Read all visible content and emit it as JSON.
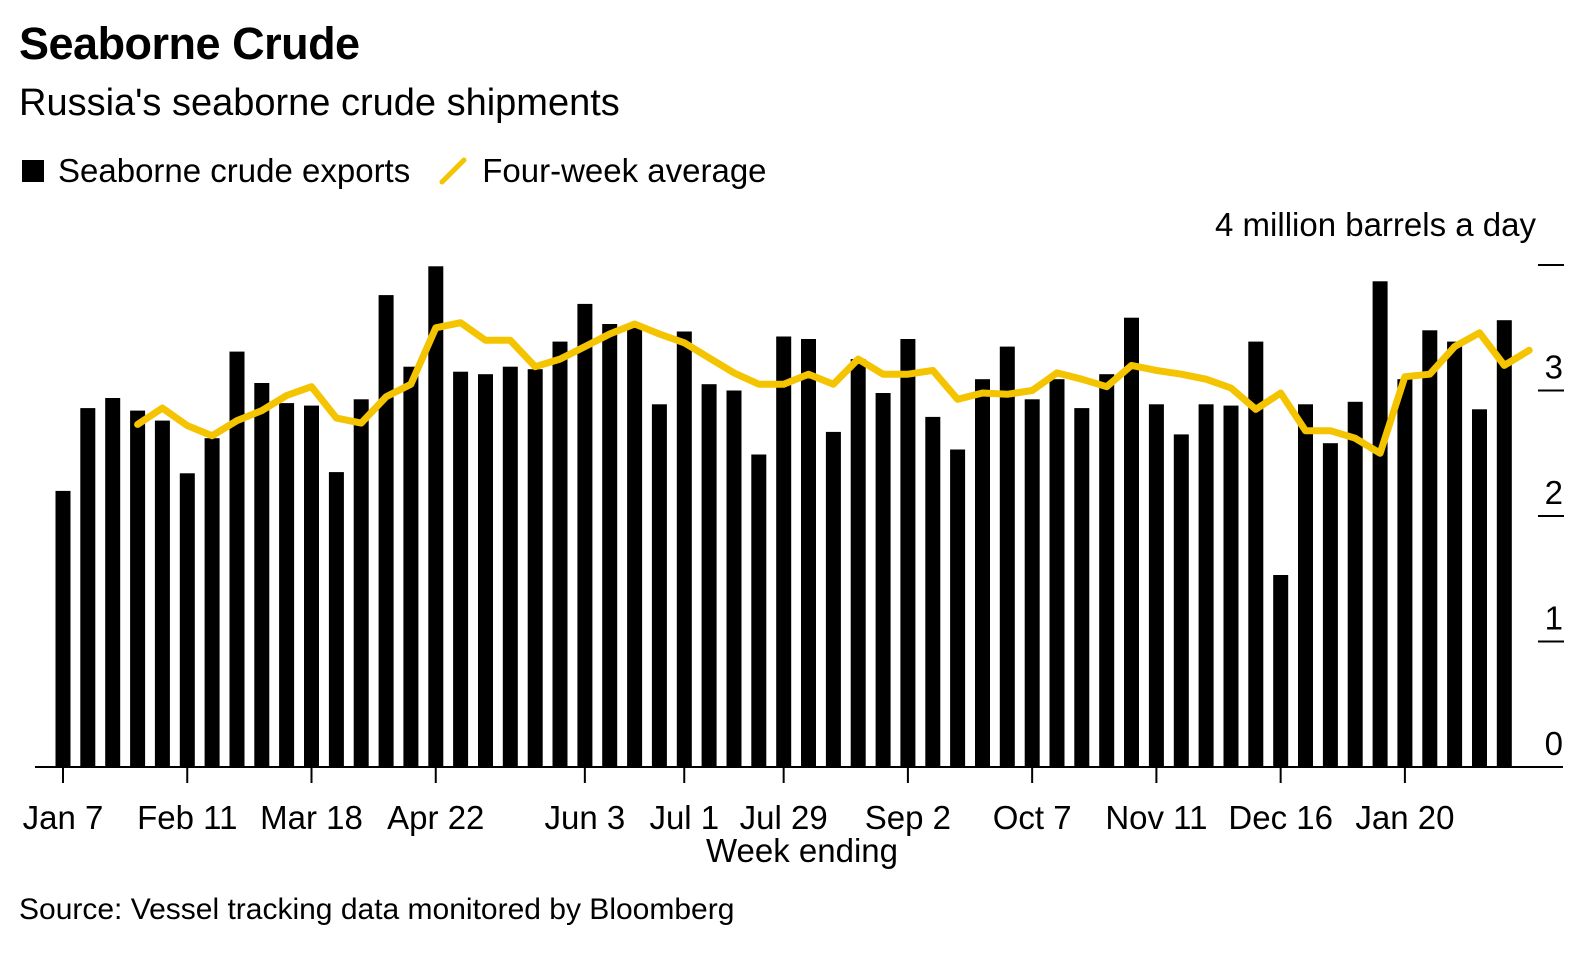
{
  "title": "Seaborne Crude",
  "subtitle": "Russia's seaborne crude shipments",
  "legend": {
    "bars_label": "Seaborne crude exports",
    "line_label": "Four-week average"
  },
  "unit_label": "4 million barrels a day",
  "x_axis_title": "Week ending",
  "source": "Source: Vessel tracking data monitored by Bloomberg",
  "colors": {
    "bars": "#000000",
    "line": "#F5C400"
  },
  "chart_data": {
    "type": "bar",
    "ylim": [
      0,
      4
    ],
    "y_ticks": [
      "0",
      "1",
      "2",
      "3"
    ],
    "x_tick_labels": [
      {
        "index": 0,
        "label": "Jan 7"
      },
      {
        "index": 5,
        "label": "Feb 11"
      },
      {
        "index": 10,
        "label": "Mar 18"
      },
      {
        "index": 15,
        "label": "Apr 22"
      },
      {
        "index": 21,
        "label": "Jun 3"
      },
      {
        "index": 25,
        "label": "Jul 1"
      },
      {
        "index": 29,
        "label": "Jul 29"
      },
      {
        "index": 34,
        "label": "Sep 2"
      },
      {
        "index": 39,
        "label": "Oct 7"
      },
      {
        "index": 44,
        "label": "Nov 11"
      },
      {
        "index": 49,
        "label": "Dec 16"
      },
      {
        "index": 54,
        "label": "Jan 20"
      }
    ],
    "series": [
      {
        "name": "Seaborne crude exports",
        "type": "bar",
        "values": [
          2.2,
          2.86,
          2.94,
          2.84,
          2.76,
          2.34,
          2.62,
          3.31,
          3.06,
          2.9,
          2.88,
          2.35,
          2.93,
          3.76,
          3.19,
          3.99,
          3.15,
          3.13,
          3.19,
          3.17,
          3.39,
          3.69,
          3.53,
          3.5,
          2.89,
          3.47,
          3.05,
          3.0,
          2.49,
          3.43,
          3.41,
          2.67,
          3.25,
          2.98,
          3.41,
          2.79,
          2.53,
          3.09,
          3.35,
          2.93,
          3.09,
          2.86,
          3.13,
          3.58,
          2.89,
          2.65,
          2.89,
          2.88,
          3.39,
          1.53,
          2.89,
          2.58,
          2.91,
          3.87,
          3.09,
          3.48,
          3.39,
          2.85,
          3.56
        ]
      },
      {
        "name": "Four-week average",
        "type": "line",
        "start_index": 3,
        "values": [
          2.73,
          2.86,
          2.72,
          2.64,
          2.76,
          2.84,
          2.96,
          3.03,
          2.78,
          2.74,
          2.95,
          3.05,
          3.5,
          3.54,
          3.4,
          3.4,
          3.19,
          3.25,
          3.35,
          3.45,
          3.53,
          3.45,
          3.38,
          3.26,
          3.14,
          3.05,
          3.05,
          3.13,
          3.05,
          3.25,
          3.13,
          3.13,
          3.16,
          2.93,
          2.98,
          2.97,
          3.0,
          3.14,
          3.09,
          3.03,
          3.2,
          3.16,
          3.13,
          3.09,
          3.02,
          2.85,
          2.98,
          2.68,
          2.68,
          2.62,
          2.5,
          3.11,
          3.13,
          3.35,
          3.46,
          3.2,
          3.32
        ]
      }
    ]
  }
}
